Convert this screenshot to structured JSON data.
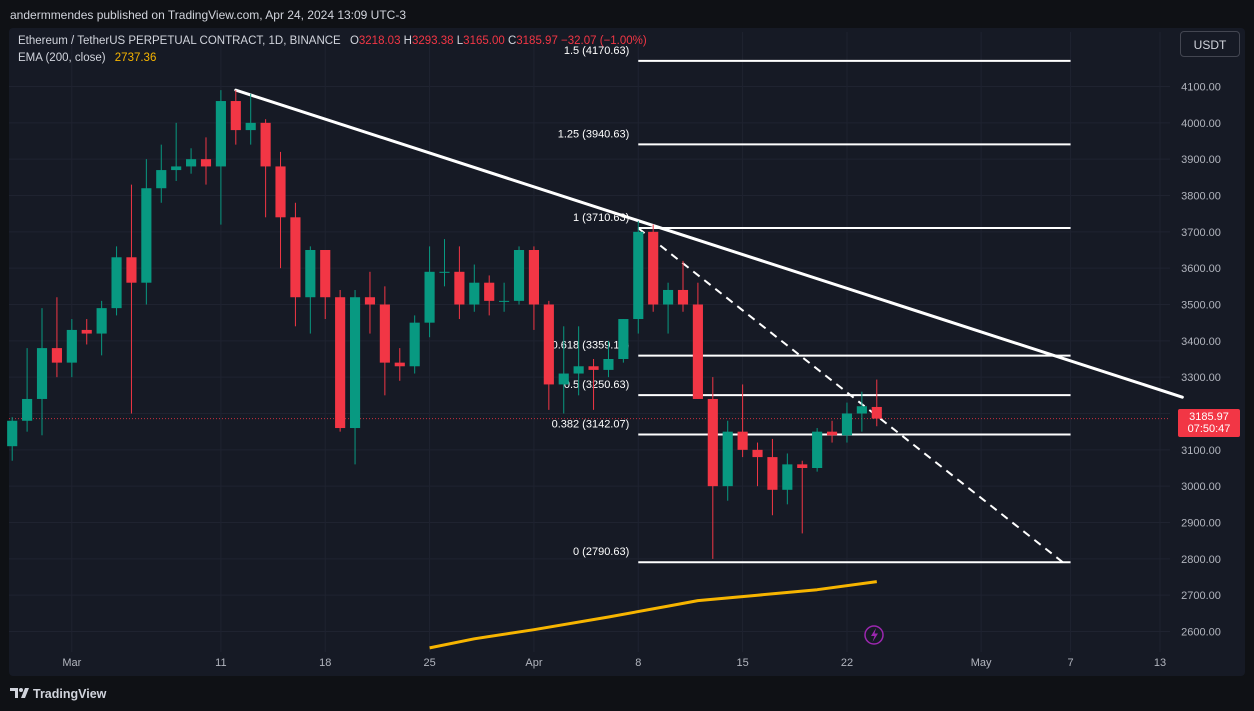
{
  "header": {
    "publish_text": "andermmendes published on TradingView.com, Apr 24, 2024 13:09 UTC-3"
  },
  "legend": {
    "symbol": "Ethereum / TetherUS PERPETUAL CONTRACT, 1D, BINANCE",
    "o_label": "O",
    "o_value": "3218.03",
    "h_label": "H",
    "h_value": "3293.38",
    "l_label": "L",
    "l_value": "3165.00",
    "c_label": "C",
    "c_value": "3185.97",
    "change": "−32.07 (−1.00%)",
    "ema_label": "EMA (200, close)",
    "ema_value": "2737.36"
  },
  "toolbar": {
    "currency": "USDT"
  },
  "last_price": {
    "value": "3185.97",
    "countdown": "07:50:47"
  },
  "footer": {
    "brand": "TradingView"
  },
  "colors": {
    "up": "#089981",
    "down": "#f23645",
    "ema": "#f7b500",
    "level_lines": "#ffffff",
    "axis_text": "#b2b5be",
    "background": "#161a25"
  },
  "chart_data": {
    "type": "candlestick",
    "y_axis": {
      "ticks": [
        2600,
        2700,
        2800,
        2900,
        3000,
        3100,
        3200,
        3300,
        3400,
        3500,
        3600,
        3700,
        3800,
        3900,
        4000,
        4100
      ],
      "tick_labels": [
        "2600.00",
        "2700.00",
        "2800.00",
        "2900.00",
        "3000.00",
        "3100.00",
        "3200.00",
        "3300.00",
        "3400.00",
        "3500.00",
        "3600.00",
        "3700.00",
        "3800.00",
        "3900.00",
        "4000.00",
        "4100.00"
      ],
      "range": [
        2560,
        4270
      ]
    },
    "x_axis": {
      "range": [
        "2024-02-26",
        "2024-05-14"
      ],
      "ticks": [
        {
          "date": "2024-03-01",
          "label": "Mar"
        },
        {
          "date": "2024-03-11",
          "label": "11"
        },
        {
          "date": "2024-03-18",
          "label": "18"
        },
        {
          "date": "2024-03-25",
          "label": "25"
        },
        {
          "date": "2024-04-01",
          "label": "Apr"
        },
        {
          "date": "2024-04-08",
          "label": "8"
        },
        {
          "date": "2024-04-15",
          "label": "15"
        },
        {
          "date": "2024-04-22",
          "label": "22"
        },
        {
          "date": "2024-05-01",
          "label": "May"
        },
        {
          "date": "2024-05-07",
          "label": "7"
        },
        {
          "date": "2024-05-13",
          "label": "13"
        }
      ]
    },
    "candles": [
      {
        "date": "2024-02-26",
        "o": 3110,
        "h": 3190,
        "l": 3070,
        "c": 3180
      },
      {
        "date": "2024-02-27",
        "o": 3180,
        "h": 3380,
        "l": 3150,
        "c": 3240
      },
      {
        "date": "2024-02-28",
        "o": 3240,
        "h": 3490,
        "l": 3140,
        "c": 3380
      },
      {
        "date": "2024-02-29",
        "o": 3380,
        "h": 3520,
        "l": 3300,
        "c": 3340
      },
      {
        "date": "2024-03-01",
        "o": 3340,
        "h": 3460,
        "l": 3300,
        "c": 3430
      },
      {
        "date": "2024-03-02",
        "o": 3430,
        "h": 3460,
        "l": 3390,
        "c": 3420
      },
      {
        "date": "2024-03-03",
        "o": 3420,
        "h": 3510,
        "l": 3360,
        "c": 3490
      },
      {
        "date": "2024-03-04",
        "o": 3490,
        "h": 3660,
        "l": 3470,
        "c": 3630
      },
      {
        "date": "2024-03-05",
        "o": 3630,
        "h": 3830,
        "l": 3200,
        "c": 3560
      },
      {
        "date": "2024-03-06",
        "o": 3560,
        "h": 3900,
        "l": 3500,
        "c": 3820
      },
      {
        "date": "2024-03-07",
        "o": 3820,
        "h": 3940,
        "l": 3780,
        "c": 3870
      },
      {
        "date": "2024-03-08",
        "o": 3870,
        "h": 4000,
        "l": 3840,
        "c": 3880
      },
      {
        "date": "2024-03-09",
        "o": 3880,
        "h": 3930,
        "l": 3860,
        "c": 3900
      },
      {
        "date": "2024-03-10",
        "o": 3900,
        "h": 3960,
        "l": 3830,
        "c": 3880
      },
      {
        "date": "2024-03-11",
        "o": 3880,
        "h": 4090,
        "l": 3720,
        "c": 4060
      },
      {
        "date": "2024-03-12",
        "o": 4060,
        "h": 4090,
        "l": 3940,
        "c": 3980
      },
      {
        "date": "2024-03-13",
        "o": 3980,
        "h": 4080,
        "l": 3940,
        "c": 4000
      },
      {
        "date": "2024-03-14",
        "o": 4000,
        "h": 4010,
        "l": 3740,
        "c": 3880
      },
      {
        "date": "2024-03-15",
        "o": 3880,
        "h": 3920,
        "l": 3600,
        "c": 3740
      },
      {
        "date": "2024-03-16",
        "o": 3740,
        "h": 3780,
        "l": 3440,
        "c": 3520
      },
      {
        "date": "2024-03-17",
        "o": 3520,
        "h": 3660,
        "l": 3420,
        "c": 3650
      },
      {
        "date": "2024-03-18",
        "o": 3650,
        "h": 3650,
        "l": 3460,
        "c": 3520
      },
      {
        "date": "2024-03-19",
        "o": 3520,
        "h": 3540,
        "l": 3150,
        "c": 3160
      },
      {
        "date": "2024-03-20",
        "o": 3160,
        "h": 3540,
        "l": 3060,
        "c": 3520
      },
      {
        "date": "2024-03-21",
        "o": 3520,
        "h": 3590,
        "l": 3420,
        "c": 3500
      },
      {
        "date": "2024-03-22",
        "o": 3500,
        "h": 3550,
        "l": 3250,
        "c": 3340
      },
      {
        "date": "2024-03-23",
        "o": 3340,
        "h": 3380,
        "l": 3290,
        "c": 3330
      },
      {
        "date": "2024-03-24",
        "o": 3330,
        "h": 3470,
        "l": 3310,
        "c": 3450
      },
      {
        "date": "2024-03-25",
        "o": 3450,
        "h": 3660,
        "l": 3410,
        "c": 3590
      },
      {
        "date": "2024-03-26",
        "o": 3590,
        "h": 3680,
        "l": 3550,
        "c": 3590
      },
      {
        "date": "2024-03-27",
        "o": 3590,
        "h": 3660,
        "l": 3460,
        "c": 3500
      },
      {
        "date": "2024-03-28",
        "o": 3500,
        "h": 3610,
        "l": 3480,
        "c": 3560
      },
      {
        "date": "2024-03-29",
        "o": 3560,
        "h": 3580,
        "l": 3470,
        "c": 3510
      },
      {
        "date": "2024-03-30",
        "o": 3510,
        "h": 3560,
        "l": 3480,
        "c": 3510
      },
      {
        "date": "2024-03-31",
        "o": 3510,
        "h": 3660,
        "l": 3500,
        "c": 3650
      },
      {
        "date": "2024-04-01",
        "o": 3650,
        "h": 3660,
        "l": 3430,
        "c": 3500
      },
      {
        "date": "2024-04-02",
        "o": 3500,
        "h": 3510,
        "l": 3210,
        "c": 3280
      },
      {
        "date": "2024-04-03",
        "o": 3280,
        "h": 3440,
        "l": 3200,
        "c": 3310
      },
      {
        "date": "2024-04-04",
        "o": 3310,
        "h": 3440,
        "l": 3250,
        "c": 3330
      },
      {
        "date": "2024-04-05",
        "o": 3330,
        "h": 3350,
        "l": 3210,
        "c": 3320
      },
      {
        "date": "2024-04-06",
        "o": 3320,
        "h": 3400,
        "l": 3300,
        "c": 3350
      },
      {
        "date": "2024-04-07",
        "o": 3350,
        "h": 3460,
        "l": 3340,
        "c": 3460
      },
      {
        "date": "2024-04-08",
        "o": 3460,
        "h": 3730,
        "l": 3420,
        "c": 3700
      },
      {
        "date": "2024-04-09",
        "o": 3700,
        "h": 3720,
        "l": 3480,
        "c": 3500
      },
      {
        "date": "2024-04-10",
        "o": 3500,
        "h": 3560,
        "l": 3420,
        "c": 3540
      },
      {
        "date": "2024-04-11",
        "o": 3540,
        "h": 3620,
        "l": 3480,
        "c": 3500
      },
      {
        "date": "2024-04-12",
        "o": 3500,
        "h": 3560,
        "l": 3240,
        "c": 3240
      },
      {
        "date": "2024-04-13",
        "o": 3240,
        "h": 3300,
        "l": 2800,
        "c": 3000
      },
      {
        "date": "2024-04-14",
        "o": 3000,
        "h": 3180,
        "l": 2960,
        "c": 3150
      },
      {
        "date": "2024-04-15",
        "o": 3150,
        "h": 3280,
        "l": 3080,
        "c": 3100
      },
      {
        "date": "2024-04-16",
        "o": 3100,
        "h": 3120,
        "l": 3000,
        "c": 3080
      },
      {
        "date": "2024-04-17",
        "o": 3080,
        "h": 3130,
        "l": 2920,
        "c": 2990
      },
      {
        "date": "2024-04-18",
        "o": 2990,
        "h": 3090,
        "l": 2950,
        "c": 3060
      },
      {
        "date": "2024-04-19",
        "o": 3060,
        "h": 3070,
        "l": 2870,
        "c": 3050
      },
      {
        "date": "2024-04-20",
        "o": 3050,
        "h": 3160,
        "l": 3040,
        "c": 3150
      },
      {
        "date": "2024-04-21",
        "o": 3150,
        "h": 3180,
        "l": 3120,
        "c": 3140
      },
      {
        "date": "2024-04-22",
        "o": 3140,
        "h": 3230,
        "l": 3120,
        "c": 3200
      },
      {
        "date": "2024-04-23",
        "o": 3200,
        "h": 3260,
        "l": 3150,
        "c": 3220
      },
      {
        "date": "2024-04-24",
        "o": 3218.03,
        "h": 3293.38,
        "l": 3165.0,
        "c": 3185.97
      }
    ],
    "ema_series": {
      "name": "EMA (200, close)",
      "points": [
        {
          "date": "2024-03-25",
          "y": 2555
        },
        {
          "date": "2024-03-28",
          "y": 2580
        },
        {
          "date": "2024-04-01",
          "y": 2605
        },
        {
          "date": "2024-04-06",
          "y": 2640
        },
        {
          "date": "2024-04-10",
          "y": 2670
        },
        {
          "date": "2024-04-12",
          "y": 2685
        },
        {
          "date": "2024-04-16",
          "y": 2700
        },
        {
          "date": "2024-04-20",
          "y": 2715
        },
        {
          "date": "2024-04-24",
          "y": 2737.36
        }
      ]
    },
    "fib_levels": [
      {
        "label": "1.5 (4170.63)",
        "value": 4170.63
      },
      {
        "label": "1.25 (3940.63)",
        "value": 3940.63
      },
      {
        "label": "1 (3710.63)",
        "value": 3710.63
      },
      {
        "label": "0.618 (3359.19)",
        "value": 3359.19
      },
      {
        "label": "0.5 (3250.63)",
        "value": 3250.63
      },
      {
        "label": "0.382 (3142.07)",
        "value": 3142.07
      },
      {
        "label": "0 (2790.63)",
        "value": 2790.63
      }
    ],
    "fib_range": {
      "start": "2024-04-08",
      "end": "2024-05-07"
    },
    "trendline": {
      "from": {
        "date": "2024-03-12",
        "y": 4090
      },
      "to": {
        "date": "2024-05-14",
        "y": 3245
      }
    },
    "dashed_line": {
      "from": {
        "date": "2024-04-08",
        "y": 3710
      },
      "to": {
        "date": "2024-05-07",
        "y": 2790
      }
    },
    "last_price": 3185.97
  }
}
